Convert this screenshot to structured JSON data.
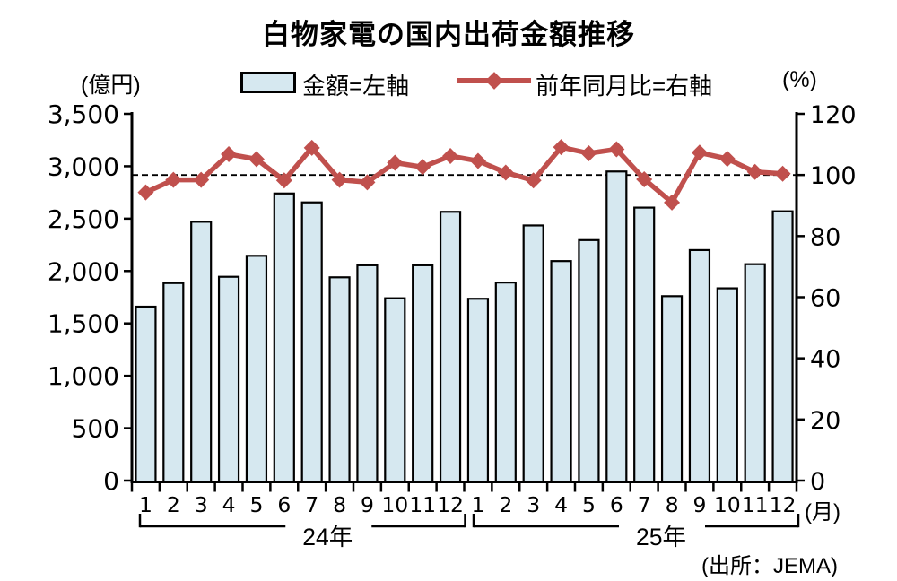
{
  "title": "白物家電の国内出荷金額推移",
  "left_axis_unit": "(億円)",
  "right_axis_unit": "(%)",
  "month_axis_unit": "(月)",
  "source": "(出所：JEMA)",
  "legend": {
    "bars_label": "金額=左軸",
    "line_label": "前年同月比=右軸"
  },
  "colors": {
    "bar_fill": "#d6e8f0",
    "bar_stroke": "#000000",
    "line": "#c0504d",
    "axis": "#000000",
    "reference_line": "#000000"
  },
  "chart_data": {
    "type": "bar",
    "subtype": "combo-bar-line-dual-axis",
    "title": "白物家電の国内出荷金額推移",
    "categories_months": [
      "1",
      "2",
      "3",
      "4",
      "5",
      "6",
      "7",
      "8",
      "9",
      "10",
      "11",
      "12",
      "1",
      "2",
      "3",
      "4",
      "5",
      "6",
      "7",
      "8",
      "9",
      "10",
      "11",
      "12"
    ],
    "year_groups": [
      {
        "label": "24年",
        "months": 12
      },
      {
        "label": "25年",
        "months": 12
      }
    ],
    "series": [
      {
        "name": "金額=左軸",
        "type": "bar",
        "axis": "left",
        "unit": "億円",
        "values": [
          1660,
          1885,
          2470,
          1945,
          2145,
          2740,
          2655,
          1940,
          2055,
          1740,
          2055,
          2565,
          1735,
          1890,
          2435,
          2095,
          2295,
          2950,
          2605,
          1760,
          2200,
          1835,
          2065,
          2570
        ]
      },
      {
        "name": "前年同月比=右軸",
        "type": "line",
        "axis": "right",
        "unit": "%",
        "marker": "diamond",
        "values": [
          94.3,
          98.4,
          98.4,
          106.8,
          105.2,
          98.2,
          108.9,
          98.4,
          97.6,
          104.0,
          102.6,
          106.2,
          104.6,
          100.8,
          98.2,
          109.1,
          107.1,
          108.4,
          98.6,
          91.0,
          107.3,
          105.3,
          101.0,
          100.4
        ]
      }
    ],
    "left_axis": {
      "label": "(億円)",
      "min": 0,
      "max": 3500,
      "step": 500
    },
    "right_axis": {
      "label": "(%)",
      "min": 0,
      "max": 120,
      "step": 20
    },
    "reference_line": {
      "axis": "right",
      "value": 100,
      "style": "dashed"
    },
    "x_axis_unit": "(月)",
    "legend_position": "top",
    "grid": false,
    "source": "(出所：JEMA)"
  }
}
